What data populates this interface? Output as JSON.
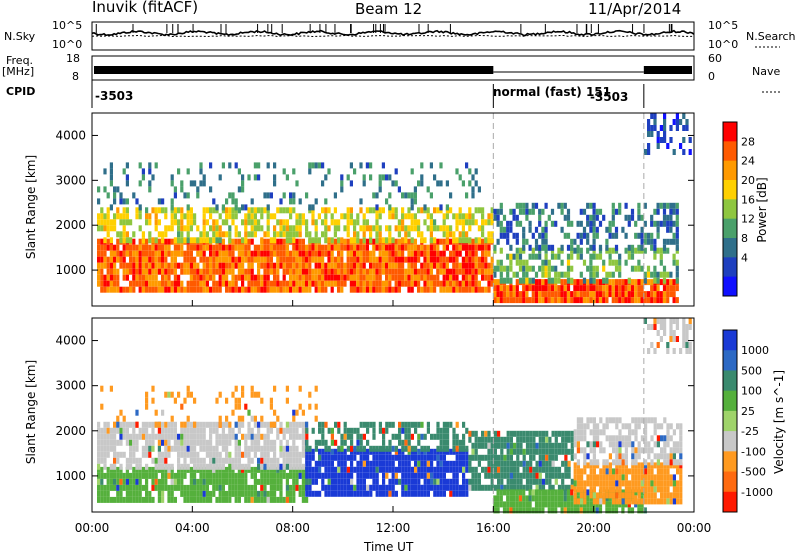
{
  "header": {
    "station": "Inuvik (fitACF)",
    "beam": "Beam 12",
    "date": "11/Apr/2014"
  },
  "side_labels": {
    "nsky": "N.Sky",
    "freq": "Freq.",
    "freq_unit": "[MHz]",
    "cpid": "CPID",
    "nsearch": "N.Search",
    "nave": "Nave"
  },
  "small_ticks": {
    "noise_left_top": "10^5",
    "noise_left_bottom": "10^0",
    "noise_right_top": "10^5",
    "noise_right_bottom": "10^0",
    "freq_top": "18",
    "freq_bottom": "8",
    "nave_top": "60",
    "nave_bottom": "0"
  },
  "cpid": {
    "left_label": "-3503",
    "middle_label": "normal (fast) 151",
    "right_label": "-3503"
  },
  "chart_data": [
    {
      "type": "heatmap",
      "name": "power",
      "ylabel": "Slant Range [km]",
      "y_ticks": [
        1000,
        2000,
        3000,
        4000
      ],
      "ylim": [
        200,
        4500
      ],
      "colorbar_label": "Power [dB]",
      "colorbar_ticks": [
        "28",
        "24",
        "20",
        "16",
        "12",
        "8",
        "4"
      ],
      "colorbar_colors": [
        "#ff0000",
        "#ff5a00",
        "#ff9a00",
        "#ffd000",
        "#8ec63f",
        "#4aa06a",
        "#2f6f8a",
        "#1e3fbf",
        "#1010ff"
      ],
      "bands": [
        {
          "x0": 0.2,
          "x1": 16.0,
          "y0": 500,
          "y1": 1700,
          "level": 26,
          "density": 0.9
        },
        {
          "x0": 0.2,
          "x1": 16.0,
          "y0": 1700,
          "y1": 2400,
          "level": 18,
          "density": 0.6
        },
        {
          "x0": 0.2,
          "x1": 15.5,
          "y0": 2400,
          "y1": 3400,
          "level": 10,
          "density": 0.18
        },
        {
          "x0": 16.0,
          "x1": 23.3,
          "y0": 350,
          "y1": 800,
          "level": 27,
          "density": 0.95
        },
        {
          "x0": 16.0,
          "x1": 23.3,
          "y0": 800,
          "y1": 1500,
          "level": 14,
          "density": 0.5
        },
        {
          "x0": 16.0,
          "x1": 23.3,
          "y0": 1500,
          "y1": 2500,
          "level": 9,
          "density": 0.4
        },
        {
          "x0": 22.0,
          "x1": 23.8,
          "y0": 3600,
          "y1": 4500,
          "level": 6,
          "density": 0.4
        }
      ]
    },
    {
      "type": "heatmap",
      "name": "velocity",
      "ylabel": "Slant Range [km]",
      "y_ticks": [
        1000,
        2000,
        3000,
        4000
      ],
      "ylim": [
        200,
        4500
      ],
      "colorbar_label": "Velocity [m s^-1]",
      "colorbar_ticks": [
        "1000",
        "500",
        "100",
        "25",
        "-25",
        "-100",
        "-500",
        "-1000"
      ],
      "colorbar_colors": [
        "#1a3ad6",
        "#2c69c4",
        "#3a8a6e",
        "#55b03c",
        "#9fd36a",
        "#c8c8c8",
        "#ff9a20",
        "#ff6a10",
        "#ff1a00"
      ],
      "bands": [
        {
          "x0": 0.2,
          "x1": 8.5,
          "y0": 500,
          "y1": 1200,
          "level": "#55b03c",
          "density": 0.85
        },
        {
          "x0": 0.2,
          "x1": 8.5,
          "y0": 1200,
          "y1": 2200,
          "level": "#c8c8c8",
          "density": 0.8
        },
        {
          "x0": 8.5,
          "x1": 15.0,
          "y0": 600,
          "y1": 1600,
          "level": "#1a3ad6",
          "density": 0.9
        },
        {
          "x0": 8.5,
          "x1": 15.0,
          "y0": 1600,
          "y1": 2200,
          "level": "#3a8a6e",
          "density": 0.6
        },
        {
          "x0": 15.0,
          "x1": 19.2,
          "y0": 800,
          "y1": 2000,
          "level": "#3a8a6e",
          "density": 0.85
        },
        {
          "x0": 16.0,
          "x1": 22.0,
          "y0": 300,
          "y1": 700,
          "level": "#55b03c",
          "density": 0.9
        },
        {
          "x0": 19.2,
          "x1": 23.5,
          "y0": 500,
          "y1": 1300,
          "level": "#ff9a20",
          "density": 0.9
        },
        {
          "x0": 19.2,
          "x1": 23.5,
          "y0": 1300,
          "y1": 2300,
          "level": "#c8c8c8",
          "density": 0.65
        },
        {
          "x0": 0.2,
          "x1": 9.0,
          "y0": 2200,
          "y1": 3000,
          "level": "#ff9a20",
          "density": 0.2
        },
        {
          "x0": 22.0,
          "x1": 23.8,
          "y0": 3800,
          "y1": 4500,
          "level": "#c8c8c8",
          "density": 0.5
        }
      ]
    }
  ],
  "x_axis": {
    "label": "Time UT",
    "ticks": [
      "00:00",
      "04:00",
      "08:00",
      "12:00",
      "16:00",
      "20:00",
      "00:00"
    ],
    "tick_hours": [
      0,
      4,
      8,
      12,
      16,
      20,
      24
    ],
    "range_hours": [
      0,
      24
    ]
  },
  "mode_boundaries_hours": [
    16.0,
    22.0
  ]
}
